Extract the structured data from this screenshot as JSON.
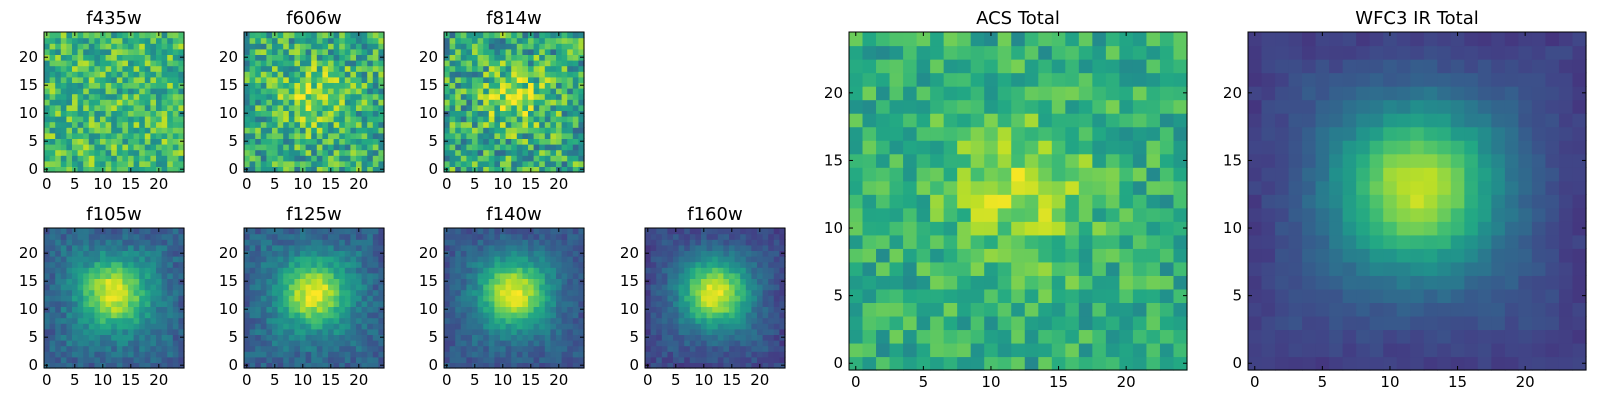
{
  "chart_data": [
    {
      "type": "heatmap",
      "title": "f435w",
      "colormap": "viridis",
      "source": "noise",
      "peak": 0.0,
      "base": 0.68,
      "noise": 0.45,
      "seed": 11,
      "xlim": [
        0,
        24
      ],
      "ylim": [
        0,
        24
      ],
      "xticks": [
        "0",
        "5",
        "10",
        "15",
        "20"
      ],
      "yticks": [
        "0",
        "5",
        "10",
        "15",
        "20"
      ]
    },
    {
      "type": "heatmap",
      "title": "f606w",
      "colormap": "viridis",
      "source": "noise",
      "peak": 0.22,
      "base": 0.62,
      "noise": 0.5,
      "seed": 23,
      "xlim": [
        0,
        24
      ],
      "ylim": [
        0,
        24
      ],
      "xticks": [
        "0",
        "5",
        "10",
        "15",
        "20"
      ],
      "yticks": [
        "0",
        "5",
        "10",
        "15",
        "20"
      ]
    },
    {
      "type": "heatmap",
      "title": "f814w",
      "colormap": "viridis",
      "source": "noise",
      "peak": 0.25,
      "base": 0.6,
      "noise": 0.55,
      "seed": 37,
      "xlim": [
        0,
        24
      ],
      "ylim": [
        0,
        24
      ],
      "xticks": [
        "0",
        "5",
        "10",
        "15",
        "20"
      ],
      "yticks": [
        "0",
        "5",
        "10",
        "15",
        "20"
      ]
    },
    {
      "type": "heatmap",
      "title": "f105w",
      "colormap": "viridis",
      "source": "gaussian",
      "peak": 0.55,
      "base": 0.42,
      "noise": 0.18,
      "seed": 41,
      "xlim": [
        0,
        24
      ],
      "ylim": [
        0,
        24
      ],
      "xticks": [
        "0",
        "5",
        "10",
        "15",
        "20"
      ],
      "yticks": [
        "0",
        "5",
        "10",
        "15",
        "20"
      ]
    },
    {
      "type": "heatmap",
      "title": "f125w",
      "colormap": "viridis",
      "source": "gaussian",
      "peak": 0.55,
      "base": 0.42,
      "noise": 0.18,
      "seed": 53,
      "xlim": [
        0,
        24
      ],
      "ylim": [
        0,
        24
      ],
      "xticks": [
        "0",
        "5",
        "10",
        "15",
        "20"
      ],
      "yticks": [
        "0",
        "5",
        "10",
        "15",
        "20"
      ]
    },
    {
      "type": "heatmap",
      "title": "f140w",
      "colormap": "viridis",
      "source": "gaussian",
      "peak": 0.6,
      "base": 0.38,
      "noise": 0.14,
      "seed": 67,
      "xlim": [
        0,
        24
      ],
      "ylim": [
        0,
        24
      ],
      "xticks": [
        "0",
        "5",
        "10",
        "15",
        "20"
      ],
      "yticks": [
        "0",
        "5",
        "10",
        "15",
        "20"
      ]
    },
    {
      "type": "heatmap",
      "title": "f160w",
      "colormap": "viridis",
      "source": "gaussian",
      "peak": 0.65,
      "base": 0.33,
      "noise": 0.13,
      "seed": 79,
      "xlim": [
        0,
        24
      ],
      "ylim": [
        0,
        24
      ],
      "xticks": [
        "0",
        "5",
        "10",
        "15",
        "20"
      ],
      "yticks": [
        "0",
        "5",
        "10",
        "15",
        "20"
      ]
    },
    {
      "type": "heatmap",
      "title": "ACS Total",
      "colormap": "viridis",
      "source": "noise",
      "peak": 0.25,
      "base": 0.62,
      "noise": 0.32,
      "seed": 97,
      "xlim": [
        0,
        24
      ],
      "ylim": [
        0,
        24
      ],
      "xticks": [
        "0",
        "5",
        "10",
        "15",
        "20"
      ],
      "yticks": [
        "0",
        "5",
        "10",
        "15",
        "20"
      ]
    },
    {
      "type": "heatmap",
      "title": "WFC3 IR Total",
      "colormap": "viridis",
      "source": "gaussian",
      "peak": 0.62,
      "base": 0.3,
      "noise": 0.06,
      "seed": 113,
      "xlim": [
        0,
        24
      ],
      "ylim": [
        0,
        24
      ],
      "xticks": [
        "0",
        "5",
        "10",
        "15",
        "20"
      ],
      "yticks": [
        "0",
        "5",
        "10",
        "15",
        "20"
      ]
    }
  ]
}
